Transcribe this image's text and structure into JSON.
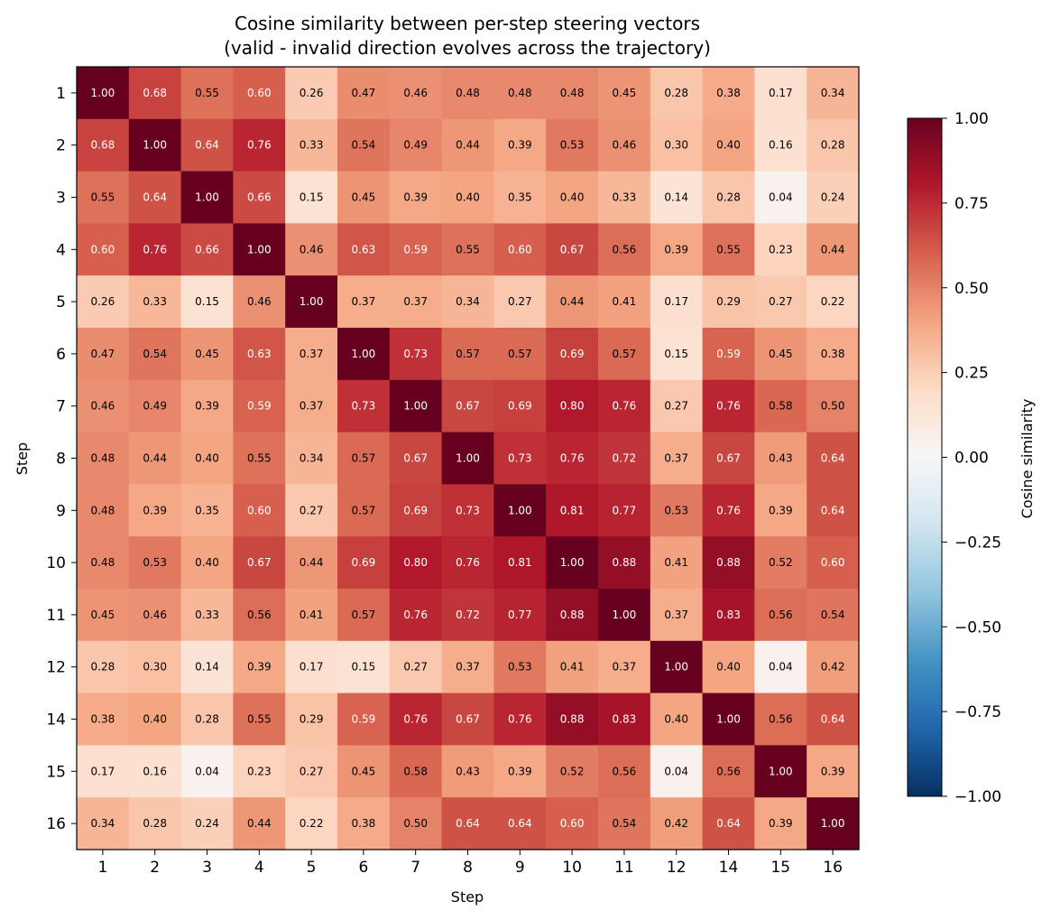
{
  "chart_data": {
    "type": "heatmap",
    "title": "Cosine similarity between per-step steering vectors",
    "subtitle": "(valid - invalid direction evolves across the trajectory)",
    "xlabel": "Step",
    "ylabel": "Step",
    "x_categories": [
      "1",
      "2",
      "3",
      "4",
      "5",
      "6",
      "7",
      "8",
      "9",
      "10",
      "11",
      "12",
      "14",
      "15",
      "16"
    ],
    "y_categories": [
      "1",
      "2",
      "3",
      "4",
      "5",
      "6",
      "7",
      "8",
      "9",
      "10",
      "11",
      "12",
      "14",
      "15",
      "16"
    ],
    "values": [
      [
        1.0,
        0.68,
        0.55,
        0.6,
        0.26,
        0.47,
        0.46,
        0.48,
        0.48,
        0.48,
        0.45,
        0.28,
        0.38,
        0.17,
        0.34
      ],
      [
        0.68,
        1.0,
        0.64,
        0.76,
        0.33,
        0.54,
        0.49,
        0.44,
        0.39,
        0.53,
        0.46,
        0.3,
        0.4,
        0.16,
        0.28
      ],
      [
        0.55,
        0.64,
        1.0,
        0.66,
        0.15,
        0.45,
        0.39,
        0.4,
        0.35,
        0.4,
        0.33,
        0.14,
        0.28,
        0.04,
        0.24
      ],
      [
        0.6,
        0.76,
        0.66,
        1.0,
        0.46,
        0.63,
        0.59,
        0.55,
        0.6,
        0.67,
        0.56,
        0.39,
        0.55,
        0.23,
        0.44
      ],
      [
        0.26,
        0.33,
        0.15,
        0.46,
        1.0,
        0.37,
        0.37,
        0.34,
        0.27,
        0.44,
        0.41,
        0.17,
        0.29,
        0.27,
        0.22
      ],
      [
        0.47,
        0.54,
        0.45,
        0.63,
        0.37,
        1.0,
        0.73,
        0.57,
        0.57,
        0.69,
        0.57,
        0.15,
        0.59,
        0.45,
        0.38
      ],
      [
        0.46,
        0.49,
        0.39,
        0.59,
        0.37,
        0.73,
        1.0,
        0.67,
        0.69,
        0.8,
        0.76,
        0.27,
        0.76,
        0.58,
        0.5
      ],
      [
        0.48,
        0.44,
        0.4,
        0.55,
        0.34,
        0.57,
        0.67,
        1.0,
        0.73,
        0.76,
        0.72,
        0.37,
        0.67,
        0.43,
        0.64
      ],
      [
        0.48,
        0.39,
        0.35,
        0.6,
        0.27,
        0.57,
        0.69,
        0.73,
        1.0,
        0.81,
        0.77,
        0.53,
        0.76,
        0.39,
        0.64
      ],
      [
        0.48,
        0.53,
        0.4,
        0.67,
        0.44,
        0.69,
        0.8,
        0.76,
        0.81,
        1.0,
        0.88,
        0.41,
        0.88,
        0.52,
        0.6
      ],
      [
        0.45,
        0.46,
        0.33,
        0.56,
        0.41,
        0.57,
        0.76,
        0.72,
        0.77,
        0.88,
        1.0,
        0.37,
        0.83,
        0.56,
        0.54
      ],
      [
        0.28,
        0.3,
        0.14,
        0.39,
        0.17,
        0.15,
        0.27,
        0.37,
        0.53,
        0.41,
        0.37,
        1.0,
        0.4,
        0.04,
        0.42
      ],
      [
        0.38,
        0.4,
        0.28,
        0.55,
        0.29,
        0.59,
        0.76,
        0.67,
        0.76,
        0.88,
        0.83,
        0.4,
        1.0,
        0.56,
        0.64
      ],
      [
        0.17,
        0.16,
        0.04,
        0.23,
        0.27,
        0.45,
        0.58,
        0.43,
        0.39,
        0.52,
        0.56,
        0.04,
        0.56,
        1.0,
        0.39
      ],
      [
        0.34,
        0.28,
        0.24,
        0.44,
        0.22,
        0.38,
        0.5,
        0.64,
        0.64,
        0.6,
        0.54,
        0.42,
        0.64,
        0.39,
        1.0
      ]
    ],
    "colormap": "RdBu_r",
    "vmin": -1.0,
    "vmax": 1.0,
    "colorbar": {
      "label": "Cosine similarity",
      "ticks": [
        1.0,
        0.75,
        0.5,
        0.25,
        0.0,
        -0.25,
        -0.5,
        -0.75,
        -1.0
      ],
      "tick_labels": [
        "1.00",
        "0.75",
        "0.50",
        "0.25",
        "0.00",
        "−0.25",
        "−0.50",
        "−0.75",
        "−1.00"
      ]
    },
    "annotation_format": "2 decimals",
    "annotation_colors": {
      "light": "#ffffff",
      "dark": "#000000"
    }
  }
}
